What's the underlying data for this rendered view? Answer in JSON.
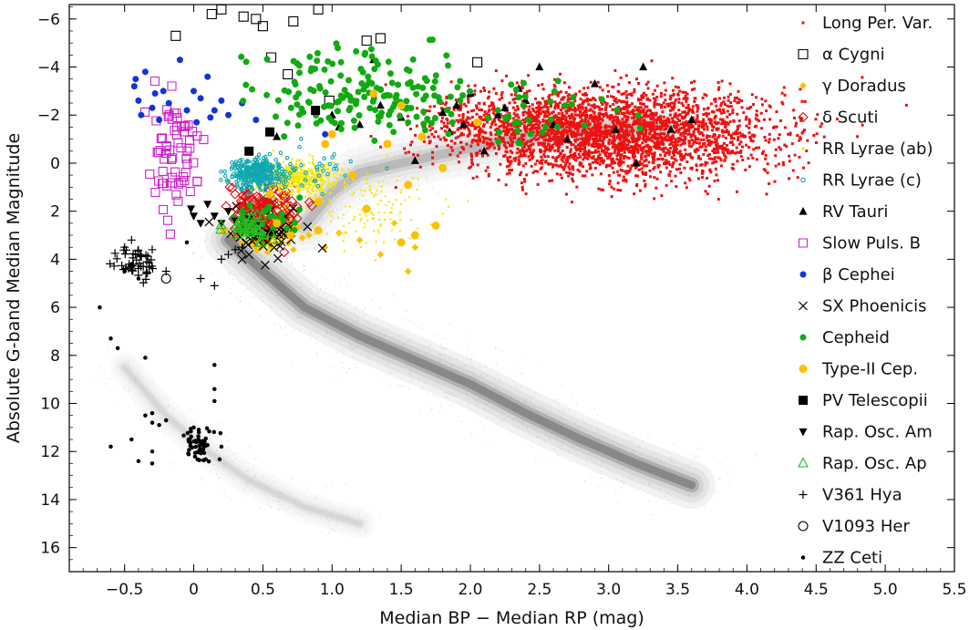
{
  "chart_data": {
    "type": "scatter",
    "title": "",
    "xlabel": "Median BP − Median RP (mag)",
    "ylabel": "Absolute G-band Median Magnitude",
    "xlim": [
      -0.9,
      5.5
    ],
    "ylim": [
      17.0,
      -6.6
    ],
    "y_inverted": true,
    "x_ticks": [
      -0.5,
      0.0,
      0.5,
      1.0,
      1.5,
      2.0,
      2.5,
      3.0,
      3.5,
      4.0,
      4.5,
      5.0,
      5.5
    ],
    "x_tick_labels": [
      "−0.5",
      "0",
      "0.5",
      "1.0",
      "1.5",
      "2.0",
      "2.5",
      "3.0",
      "3.5",
      "4.0",
      "4.5",
      "5.0",
      "5.5"
    ],
    "y_ticks": [
      -6,
      -4,
      -2,
      0,
      2,
      4,
      6,
      8,
      10,
      12,
      14,
      16
    ],
    "y_tick_labels": [
      "−6",
      "−4",
      "−2",
      "0",
      "2",
      "4",
      "6",
      "8",
      "10",
      "12",
      "14",
      "16"
    ],
    "grid": false,
    "legend_position": "right",
    "background": {
      "name": "Gaia field stars (density)",
      "color": "#8a8a8a",
      "regions": [
        {
          "name": "main sequence",
          "path": [
            [
              0.25,
              3.2
            ],
            [
              0.5,
              4.5
            ],
            [
              0.8,
              6.0
            ],
            [
              1.2,
              7.2
            ],
            [
              1.6,
              8.2
            ],
            [
              2.0,
              9.2
            ],
            [
              2.4,
              10.4
            ],
            [
              2.8,
              11.5
            ],
            [
              3.2,
              12.5
            ],
            [
              3.6,
              13.4
            ]
          ],
          "weight": 1.0,
          "spread": 0.55
        },
        {
          "name": "giant branch",
          "path": [
            [
              0.8,
              2.6
            ],
            [
              1.0,
              1.2
            ],
            [
              1.2,
              0.4
            ],
            [
              1.5,
              0.0
            ],
            [
              1.9,
              -0.5
            ],
            [
              2.3,
              -1.0
            ],
            [
              2.8,
              -1.4
            ],
            [
              3.4,
              -1.5
            ]
          ],
          "weight": 0.4,
          "spread": 0.6
        },
        {
          "name": "white dwarfs",
          "path": [
            [
              -0.5,
              8.5
            ],
            [
              -0.2,
              10.5
            ],
            [
              0.1,
              12.0
            ],
            [
              0.4,
              13.2
            ],
            [
              0.8,
              14.3
            ],
            [
              1.2,
              15.0
            ]
          ],
          "weight": 0.12,
          "spread": 0.35
        }
      ]
    },
    "series": [
      {
        "name": "Long Per. Var.",
        "marker": "square",
        "size": 3,
        "filled": true,
        "color": "#ee1111",
        "clusters": [
          {
            "x": 3.1,
            "y": -1.2,
            "sx": 0.55,
            "sy": 0.9,
            "n": 2600
          },
          {
            "x": 2.3,
            "y": -1.6,
            "sx": 0.35,
            "sy": 0.7,
            "n": 400
          }
        ]
      },
      {
        "name": "α Cygni",
        "marker": "square",
        "size": 10,
        "filled": false,
        "color": "#000000",
        "points": [
          [
            -0.13,
            -5.3
          ],
          [
            0.13,
            -6.2
          ],
          [
            0.2,
            -6.4
          ],
          [
            0.36,
            -6.1
          ],
          [
            0.45,
            -6.0
          ],
          [
            0.5,
            -5.7
          ],
          [
            0.72,
            -5.9
          ],
          [
            0.9,
            -6.4
          ],
          [
            0.56,
            -4.4
          ],
          [
            0.68,
            -3.7
          ],
          [
            0.98,
            -2.6
          ],
          [
            1.25,
            -5.1
          ],
          [
            1.35,
            -5.2
          ],
          [
            2.05,
            -4.2
          ]
        ]
      },
      {
        "name": "γ Doradus",
        "marker": "diamond",
        "size": 7,
        "filled": true,
        "color": "#ffc000",
        "clusters": [
          {
            "x": 0.55,
            "y": 2.8,
            "sx": 0.12,
            "sy": 0.45,
            "n": 70
          }
        ],
        "points": [
          [
            1.2,
            3.2
          ],
          [
            1.35,
            3.8
          ],
          [
            1.45,
            2.5
          ],
          [
            1.55,
            4.5
          ],
          [
            0.95,
            3.5
          ],
          [
            1.05,
            2.9
          ],
          [
            1.6,
            3.5
          ]
        ]
      },
      {
        "name": "δ Scuti",
        "marker": "diamond",
        "size": 9,
        "filled": false,
        "color": "#dd1111",
        "clusters": [
          {
            "x": 0.5,
            "y": 2.0,
            "sx": 0.12,
            "sy": 0.55,
            "n": 150
          }
        ]
      },
      {
        "name": "RR Lyrae (ab)",
        "marker": "circle",
        "size": 2.4,
        "filled": true,
        "color": "#f5e800",
        "clusters": [
          {
            "x": 0.75,
            "y": 0.6,
            "sx": 0.14,
            "sy": 0.35,
            "n": 550
          },
          {
            "x": 1.25,
            "y": 1.9,
            "sx": 0.25,
            "sy": 0.9,
            "n": 130
          }
        ]
      },
      {
        "name": "RR Lyrae (c)",
        "marker": "circle",
        "size": 3.4,
        "filled": false,
        "color": "#10a8b0",
        "clusters": [
          {
            "x": 0.45,
            "y": 0.4,
            "sx": 0.1,
            "sy": 0.3,
            "n": 320
          },
          {
            "x": 0.85,
            "y": 0.2,
            "sx": 0.15,
            "sy": 0.5,
            "n": 35
          }
        ]
      },
      {
        "name": "RV Tauri",
        "marker": "triangle-up",
        "size": 9,
        "filled": true,
        "color": "#000000",
        "points": [
          [
            1.0,
            -2.0
          ],
          [
            1.05,
            -1.5
          ],
          [
            1.3,
            -4.3
          ],
          [
            1.35,
            -2.4
          ],
          [
            1.5,
            -1.9
          ],
          [
            1.8,
            -2.1
          ],
          [
            1.85,
            -1.3
          ],
          [
            1.9,
            -2.4
          ],
          [
            1.95,
            -1.6
          ],
          [
            2.0,
            -2.9
          ],
          [
            2.2,
            -2.0
          ],
          [
            2.25,
            -2.3
          ],
          [
            2.35,
            -3.1
          ],
          [
            2.5,
            -4.0
          ],
          [
            2.6,
            -1.6
          ],
          [
            2.7,
            -1.0
          ],
          [
            2.9,
            -3.3
          ],
          [
            3.05,
            -1.4
          ],
          [
            3.25,
            -4.0
          ],
          [
            3.45,
            -1.4
          ],
          [
            3.6,
            -1.8
          ],
          [
            3.2,
            0.0
          ],
          [
            1.6,
            -0.1
          ],
          [
            0.6,
            -1.1
          ],
          [
            1.2,
            -1.6
          ],
          [
            2.1,
            -0.5
          ],
          [
            2.4,
            -2.6
          ]
        ]
      },
      {
        "name": "Slow Puls. B",
        "marker": "square",
        "size": 9,
        "filled": false,
        "color": "#cc22cc",
        "clusters": [
          {
            "x": -0.15,
            "y": -0.4,
            "sx": 0.09,
            "sy": 1.1,
            "n": 65
          }
        ]
      },
      {
        "name": "β Cephei",
        "marker": "circle",
        "size": 7,
        "filled": true,
        "color": "#1133dd",
        "points": [
          [
            -0.43,
            -3.2
          ],
          [
            -0.42,
            -3.5
          ],
          [
            -0.4,
            -2.6
          ],
          [
            -0.38,
            -2.0
          ],
          [
            -0.35,
            -3.8
          ],
          [
            -0.3,
            -2.3
          ],
          [
            -0.25,
            -1.8
          ],
          [
            -0.22,
            -3.0
          ],
          [
            -0.18,
            -2.5
          ],
          [
            -0.1,
            -4.3
          ],
          [
            -0.05,
            -2.2
          ],
          [
            0.0,
            -3.0
          ],
          [
            0.05,
            -2.7
          ],
          [
            0.1,
            -3.6
          ],
          [
            0.12,
            -1.9
          ],
          [
            0.15,
            -2.2
          ],
          [
            0.2,
            -2.6
          ],
          [
            0.25,
            -2.0
          ],
          [
            0.35,
            -2.5
          ],
          [
            0.45,
            -1.8
          ],
          [
            0.95,
            -1.2
          ],
          [
            0.02,
            -1.7
          ],
          [
            -0.28,
            -2.9
          ]
        ]
      },
      {
        "name": "SX Phoenicis",
        "marker": "cross",
        "size": 9,
        "filled": false,
        "color": "#000000",
        "clusters": [
          {
            "x": 0.55,
            "y": 2.9,
            "sx": 0.18,
            "sy": 0.45,
            "n": 45
          }
        ],
        "points": [
          [
            0.35,
            4.0
          ],
          [
            0.38,
            3.3
          ],
          [
            0.4,
            3.8
          ]
        ]
      },
      {
        "name": "Cepheid",
        "marker": "circle",
        "size": 7,
        "filled": true,
        "color": "#11aa11",
        "clusters": [
          {
            "x": 1.25,
            "y": -3.0,
            "sx": 0.38,
            "sy": 0.85,
            "n": 170
          },
          {
            "x": 2.3,
            "y": -2.0,
            "sx": 0.45,
            "sy": 0.8,
            "n": 40
          },
          {
            "x": 0.5,
            "y": 2.4,
            "sx": 0.12,
            "sy": 0.35,
            "n": 30
          }
        ]
      },
      {
        "name": "Type-II Cep.",
        "marker": "circle",
        "size": 9,
        "filled": true,
        "color": "#ffc000",
        "points": [
          [
            0.55,
            1.3
          ],
          [
            0.6,
            2.5
          ],
          [
            0.7,
            3.0
          ],
          [
            0.9,
            2.8
          ],
          [
            0.95,
            -0.8
          ],
          [
            1.0,
            -1.2
          ],
          [
            1.15,
            0.5
          ],
          [
            1.25,
            1.9
          ],
          [
            1.4,
            -0.8
          ],
          [
            1.5,
            -2.4
          ],
          [
            1.55,
            0.9
          ],
          [
            1.6,
            3.0
          ],
          [
            1.65,
            -1.1
          ],
          [
            1.75,
            2.6
          ],
          [
            1.8,
            0.2
          ],
          [
            1.3,
            -2.9
          ],
          [
            2.05,
            -1.7
          ],
          [
            1.5,
            3.3
          ],
          [
            0.22,
            2.8
          ],
          [
            0.9,
            1.6
          ]
        ]
      },
      {
        "name": "PV Telescopii",
        "marker": "square",
        "size": 10,
        "filled": true,
        "color": "#000000",
        "points": [
          [
            0.4,
            -0.5
          ],
          [
            0.55,
            -1.3
          ],
          [
            0.88,
            -2.2
          ]
        ]
      },
      {
        "name": "Rap. Osc. Am",
        "marker": "triangle-down",
        "size": 9,
        "filled": true,
        "color": "#000000",
        "points": [
          [
            -0.02,
            1.9
          ],
          [
            0.0,
            2.2
          ],
          [
            0.05,
            2.5
          ],
          [
            0.1,
            1.7
          ],
          [
            0.15,
            2.2
          ],
          [
            0.2,
            2.5
          ],
          [
            0.25,
            2.0
          ],
          [
            0.3,
            2.4
          ],
          [
            0.4,
            2.3
          ],
          [
            0.45,
            2.6
          ],
          [
            0.55,
            2.9
          ]
        ]
      },
      {
        "name": "Rap. Osc. Ap",
        "marker": "triangle-up",
        "size": 10,
        "filled": false,
        "color": "#22bb22",
        "clusters": [
          {
            "x": 0.4,
            "y": 2.8,
            "sx": 0.1,
            "sy": 0.3,
            "n": 35
          }
        ]
      },
      {
        "name": "V361 Hya",
        "marker": "plus",
        "size": 9,
        "filled": false,
        "color": "#000000",
        "clusters": [
          {
            "x": -0.42,
            "y": 4.2,
            "sx": 0.09,
            "sy": 0.3,
            "n": 45
          }
        ],
        "points": [
          [
            -0.45,
            3.2
          ],
          [
            -0.5,
            3.5
          ],
          [
            -0.3,
            3.6
          ],
          [
            -0.2,
            4.5
          ],
          [
            0.05,
            4.8
          ],
          [
            0.15,
            5.1
          ],
          [
            0.2,
            4.0
          ],
          [
            0.25,
            3.8
          ],
          [
            0.3,
            3.6
          ],
          [
            0.35,
            3.5
          ]
        ]
      },
      {
        "name": "V1093 Her",
        "marker": "circle",
        "size": 10,
        "filled": false,
        "color": "#000000",
        "points": [
          [
            -0.2,
            4.8
          ]
        ]
      },
      {
        "name": "ZZ Ceti",
        "marker": "circle",
        "size": 4.5,
        "filled": true,
        "color": "#000000",
        "clusters": [
          {
            "x": 0.03,
            "y": 11.8,
            "sx": 0.06,
            "sy": 0.35,
            "n": 55
          }
        ],
        "points": [
          [
            -0.68,
            6.0
          ],
          [
            -0.6,
            7.3
          ],
          [
            -0.55,
            7.7
          ],
          [
            -0.5,
            4.5
          ],
          [
            -0.45,
            4.2
          ],
          [
            -0.4,
            4.8
          ],
          [
            -0.35,
            8.1
          ],
          [
            -0.35,
            10.5
          ],
          [
            -0.3,
            10.4
          ],
          [
            -0.3,
            10.8
          ],
          [
            -0.25,
            10.9
          ],
          [
            -0.2,
            10.7
          ],
          [
            -0.6,
            11.8
          ],
          [
            -0.45,
            11.5
          ],
          [
            -0.4,
            12.4
          ],
          [
            -0.3,
            12.5
          ],
          [
            -0.3,
            12.0
          ],
          [
            0.15,
            8.4
          ],
          [
            0.15,
            9.4
          ],
          [
            0.15,
            9.9
          ],
          [
            -0.05,
            3.3
          ],
          [
            0.0,
            11.0
          ],
          [
            0.2,
            11.8
          ]
        ]
      }
    ]
  }
}
